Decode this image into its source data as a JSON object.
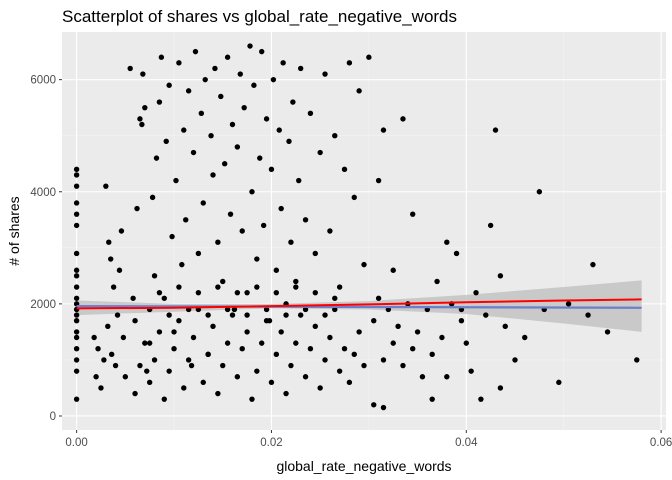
{
  "chart_data": {
    "type": "scatter",
    "title": "Scatterplot of shares vs global_rate_negative_words",
    "xlabel": "global_rate_negative_words",
    "ylabel": "# of shares",
    "xlim": [
      -0.0015,
      0.0605
    ],
    "ylim": [
      -250,
      6850
    ],
    "xticks": [
      0.0,
      0.02,
      0.04,
      0.06
    ],
    "xtick_labels": [
      "0.00",
      "0.02",
      "0.04",
      "0.06"
    ],
    "yticks": [
      0,
      2000,
      4000,
      6000
    ],
    "ytick_labels": [
      "0",
      "2000",
      "4000",
      "6000"
    ],
    "grid": true,
    "legend": "none",
    "colors": {
      "panel_bg": "#ebebeb",
      "grid_major": "#ffffff",
      "grid_minor": "#f4f4f4",
      "points": "#000000",
      "loess_line": "#ff0000",
      "lm_line": "#6d7fcc",
      "confidence_band": "#bdbdbd"
    },
    "points": [
      [
        0.0,
        300
      ],
      [
        0.0,
        800
      ],
      [
        0.0,
        1000
      ],
      [
        0.0,
        1200
      ],
      [
        0.0,
        1400
      ],
      [
        0.0,
        1500
      ],
      [
        0.0,
        1700
      ],
      [
        0.0,
        1800
      ],
      [
        0.0,
        1900
      ],
      [
        0.0,
        2000
      ],
      [
        0.0,
        2100
      ],
      [
        0.0,
        2300
      ],
      [
        0.0,
        2500
      ],
      [
        0.0,
        2600
      ],
      [
        0.0,
        2900
      ],
      [
        0.0,
        3400
      ],
      [
        0.0,
        3600
      ],
      [
        0.0,
        3800
      ],
      [
        0.0,
        4100
      ],
      [
        0.0,
        4300
      ],
      [
        0.0,
        4400
      ],
      [
        0.0018,
        1400
      ],
      [
        0.002,
        700
      ],
      [
        0.0022,
        1200
      ],
      [
        0.0025,
        500
      ],
      [
        0.0028,
        1000
      ],
      [
        0.003,
        4100
      ],
      [
        0.0032,
        1600
      ],
      [
        0.0033,
        3100
      ],
      [
        0.0035,
        2800
      ],
      [
        0.0036,
        1100
      ],
      [
        0.0038,
        2300
      ],
      [
        0.004,
        900
      ],
      [
        0.0042,
        1800
      ],
      [
        0.0044,
        2600
      ],
      [
        0.0046,
        3300
      ],
      [
        0.0048,
        1400
      ],
      [
        0.005,
        700
      ],
      [
        0.0055,
        6200
      ],
      [
        0.0058,
        2100
      ],
      [
        0.006,
        1700
      ],
      [
        0.0062,
        3700
      ],
      [
        0.0065,
        5300
      ],
      [
        0.0067,
        5200
      ],
      [
        0.0068,
        6100
      ],
      [
        0.007,
        5500
      ],
      [
        0.0072,
        800
      ],
      [
        0.0075,
        1300
      ],
      [
        0.0078,
        3900
      ],
      [
        0.008,
        2500
      ],
      [
        0.0082,
        4600
      ],
      [
        0.0085,
        5600
      ],
      [
        0.0087,
        6400
      ],
      [
        0.009,
        2100
      ],
      [
        0.0092,
        4900
      ],
      [
        0.0095,
        5900
      ],
      [
        0.0098,
        3200
      ],
      [
        0.01,
        1500
      ],
      [
        0.0102,
        4200
      ],
      [
        0.0105,
        6300
      ],
      [
        0.0108,
        2700
      ],
      [
        0.011,
        5100
      ],
      [
        0.0112,
        3500
      ],
      [
        0.0115,
        5800
      ],
      [
        0.0118,
        900
      ],
      [
        0.012,
        4700
      ],
      [
        0.0122,
        6500
      ],
      [
        0.0125,
        2900
      ],
      [
        0.0128,
        5400
      ],
      [
        0.013,
        3800
      ],
      [
        0.0132,
        6000
      ],
      [
        0.0135,
        1100
      ],
      [
        0.0138,
        5000
      ],
      [
        0.014,
        4300
      ],
      [
        0.0142,
        6200
      ],
      [
        0.0145,
        3100
      ],
      [
        0.0148,
        5700
      ],
      [
        0.015,
        2400
      ],
      [
        0.0152,
        4500
      ],
      [
        0.0155,
        6400
      ],
      [
        0.0158,
        3600
      ],
      [
        0.016,
        5200
      ],
      [
        0.0162,
        1900
      ],
      [
        0.0165,
        4800
      ],
      [
        0.0168,
        6100
      ],
      [
        0.017,
        3300
      ],
      [
        0.0172,
        5500
      ],
      [
        0.0175,
        2200
      ],
      [
        0.0178,
        6600
      ],
      [
        0.018,
        4000
      ],
      [
        0.0182,
        5900
      ],
      [
        0.0185,
        2800
      ],
      [
        0.0188,
        4600
      ],
      [
        0.019,
        6500
      ],
      [
        0.0192,
        3400
      ],
      [
        0.0195,
        5300
      ],
      [
        0.0198,
        1700
      ],
      [
        0.02,
        4400
      ],
      [
        0.0202,
        6000
      ],
      [
        0.0205,
        2600
      ],
      [
        0.0208,
        5100
      ],
      [
        0.021,
        3700
      ],
      [
        0.0212,
        6300
      ],
      [
        0.0215,
        2000
      ],
      [
        0.0218,
        4900
      ],
      [
        0.022,
        3100
      ],
      [
        0.0222,
        5600
      ],
      [
        0.0225,
        2400
      ],
      [
        0.0228,
        4200
      ],
      [
        0.023,
        6200
      ],
      [
        0.0235,
        3500
      ],
      [
        0.024,
        5400
      ],
      [
        0.0245,
        2900
      ],
      [
        0.025,
        4700
      ],
      [
        0.0255,
        6100
      ],
      [
        0.026,
        3300
      ],
      [
        0.0265,
        5000
      ],
      [
        0.027,
        2300
      ],
      [
        0.0275,
        4400
      ],
      [
        0.028,
        6300
      ],
      [
        0.0285,
        3900
      ],
      [
        0.029,
        5800
      ],
      [
        0.0295,
        2700
      ],
      [
        0.03,
        6400
      ],
      [
        0.031,
        4200
      ],
      [
        0.0315,
        5100
      ],
      [
        0.0325,
        2600
      ],
      [
        0.0335,
        5300
      ],
      [
        0.0345,
        3600
      ],
      [
        0.006,
        400
      ],
      [
        0.0065,
        900
      ],
      [
        0.007,
        1300
      ],
      [
        0.0075,
        600
      ],
      [
        0.008,
        1000
      ],
      [
        0.0085,
        1500
      ],
      [
        0.009,
        300
      ],
      [
        0.0095,
        800
      ],
      [
        0.01,
        1200
      ],
      [
        0.0105,
        1700
      ],
      [
        0.011,
        500
      ],
      [
        0.0115,
        1000
      ],
      [
        0.012,
        1400
      ],
      [
        0.0125,
        1900
      ],
      [
        0.013,
        600
      ],
      [
        0.0135,
        1100
      ],
      [
        0.014,
        1600
      ],
      [
        0.0145,
        400
      ],
      [
        0.015,
        900
      ],
      [
        0.0155,
        1300
      ],
      [
        0.016,
        1800
      ],
      [
        0.0165,
        700
      ],
      [
        0.017,
        1200
      ],
      [
        0.0175,
        1500
      ],
      [
        0.018,
        300
      ],
      [
        0.0185,
        800
      ],
      [
        0.019,
        1300
      ],
      [
        0.0195,
        1700
      ],
      [
        0.02,
        600
      ],
      [
        0.0205,
        1100
      ],
      [
        0.021,
        1500
      ],
      [
        0.0215,
        400
      ],
      [
        0.022,
        900
      ],
      [
        0.0225,
        1300
      ],
      [
        0.023,
        1800
      ],
      [
        0.0235,
        700
      ],
      [
        0.024,
        1200
      ],
      [
        0.0245,
        1600
      ],
      [
        0.025,
        500
      ],
      [
        0.0255,
        1000
      ],
      [
        0.026,
        1400
      ],
      [
        0.0265,
        1900
      ],
      [
        0.027,
        800
      ],
      [
        0.0275,
        1200
      ],
      [
        0.028,
        600
      ],
      [
        0.0285,
        1100
      ],
      [
        0.029,
        1500
      ],
      [
        0.0295,
        900
      ],
      [
        0.0075,
        1900
      ],
      [
        0.0085,
        2200
      ],
      [
        0.0095,
        1800
      ],
      [
        0.0105,
        2300
      ],
      [
        0.0115,
        1900
      ],
      [
        0.0125,
        2200
      ],
      [
        0.0135,
        1800
      ],
      [
        0.0145,
        2300
      ],
      [
        0.0155,
        1900
      ],
      [
        0.0165,
        2200
      ],
      [
        0.0175,
        1800
      ],
      [
        0.0185,
        2300
      ],
      [
        0.0195,
        1900
      ],
      [
        0.0205,
        2200
      ],
      [
        0.0215,
        1800
      ],
      [
        0.0225,
        2300
      ],
      [
        0.0235,
        1900
      ],
      [
        0.0245,
        2200
      ],
      [
        0.0255,
        1800
      ],
      [
        0.0265,
        2100
      ],
      [
        0.0305,
        1700
      ],
      [
        0.031,
        2100
      ],
      [
        0.0315,
        1000
      ],
      [
        0.032,
        1900
      ],
      [
        0.0325,
        1300
      ],
      [
        0.033,
        1600
      ],
      [
        0.0335,
        900
      ],
      [
        0.034,
        2000
      ],
      [
        0.0345,
        1200
      ],
      [
        0.035,
        1500
      ],
      [
        0.0355,
        700
      ],
      [
        0.036,
        1900
      ],
      [
        0.0365,
        1100
      ],
      [
        0.037,
        2400
      ],
      [
        0.0375,
        1400
      ],
      [
        0.038,
        3100
      ],
      [
        0.0385,
        2000
      ],
      [
        0.039,
        2900
      ],
      [
        0.0395,
        1700
      ],
      [
        0.04,
        1300
      ],
      [
        0.0405,
        800
      ],
      [
        0.041,
        2200
      ],
      [
        0.042,
        1800
      ],
      [
        0.0425,
        3400
      ],
      [
        0.043,
        5100
      ],
      [
        0.0435,
        2500
      ],
      [
        0.044,
        1600
      ],
      [
        0.045,
        1000
      ],
      [
        0.046,
        1400
      ],
      [
        0.0475,
        4000
      ],
      [
        0.048,
        1900
      ],
      [
        0.0495,
        600
      ],
      [
        0.0505,
        2000
      ],
      [
        0.053,
        2700
      ],
      [
        0.0545,
        1500
      ],
      [
        0.0575,
        1000
      ],
      [
        0.0305,
        200
      ],
      [
        0.0315,
        150
      ],
      [
        0.0365,
        300
      ],
      [
        0.038,
        700
      ],
      [
        0.0395,
        1900
      ],
      [
        0.0415,
        300
      ],
      [
        0.0435,
        500
      ],
      [
        0.0525,
        1800
      ]
    ],
    "smooth_line": {
      "x": [
        0.0,
        0.01,
        0.02,
        0.03,
        0.04,
        0.05,
        0.058
      ],
      "y": [
        1920,
        1930,
        1960,
        1990,
        2030,
        2060,
        2080
      ]
    },
    "lm_line": {
      "x": [
        0.0,
        0.058
      ],
      "y": [
        1960,
        1930
      ]
    },
    "confidence_band": {
      "x": [
        0.0,
        0.01,
        0.02,
        0.03,
        0.04,
        0.05,
        0.058
      ],
      "upper": [
        2060,
        2000,
        2000,
        2050,
        2160,
        2300,
        2420
      ],
      "lower": [
        1800,
        1860,
        1920,
        1900,
        1820,
        1650,
        1500
      ]
    }
  }
}
